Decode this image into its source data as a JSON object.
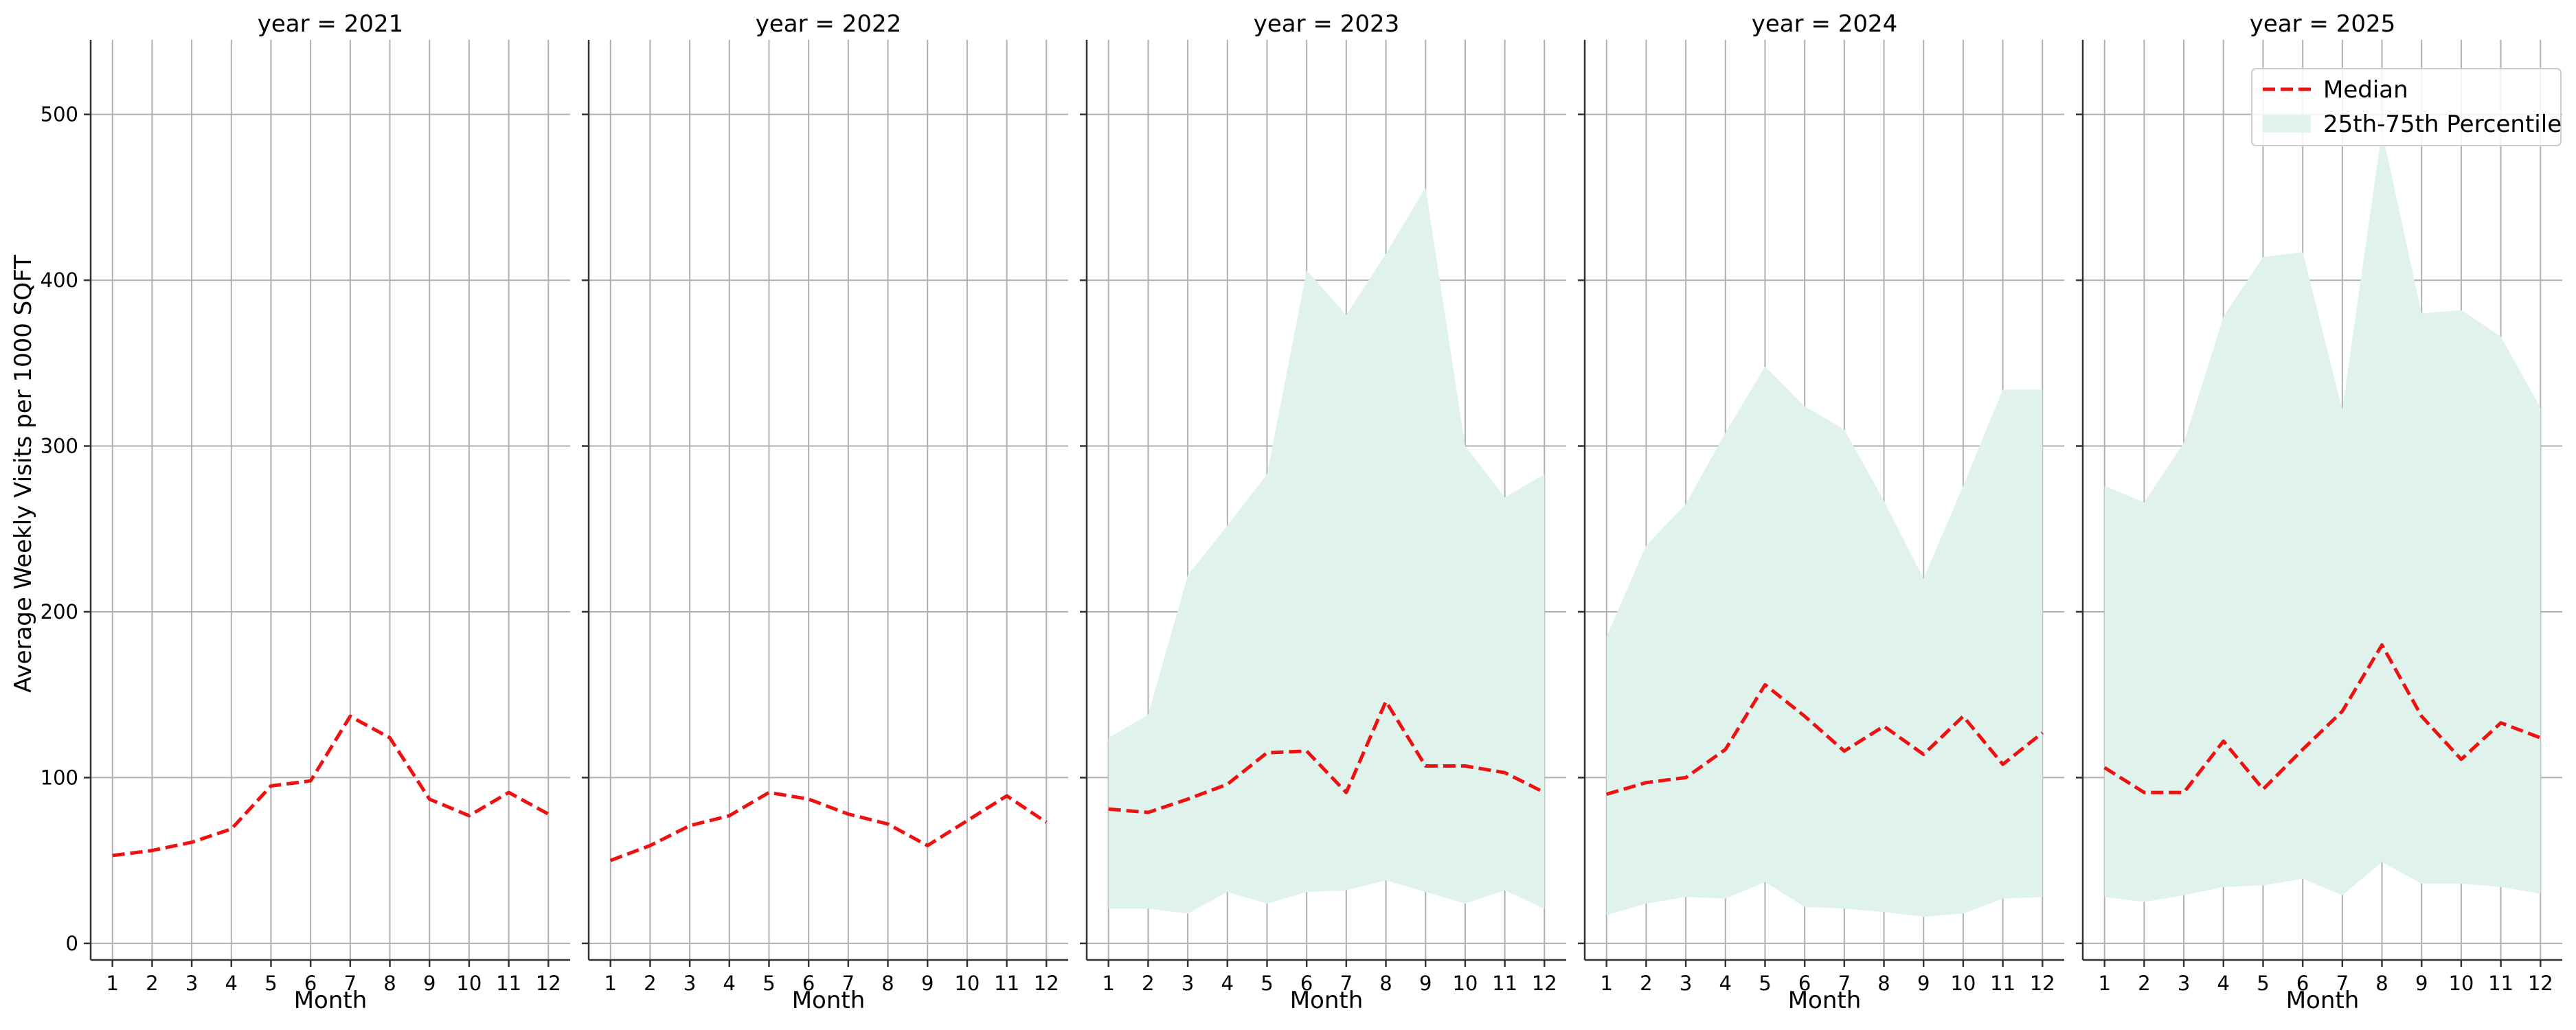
{
  "chart_data": {
    "type": "line",
    "ylabel": "Average Weekly Visits per 1000 SQFT",
    "xlabel": "Month",
    "ylim": [
      -10,
      545
    ],
    "yticks": [
      0,
      100,
      200,
      300,
      400,
      500
    ],
    "xticks": [
      1,
      2,
      3,
      4,
      5,
      6,
      7,
      8,
      9,
      10,
      11,
      12
    ],
    "grid": true,
    "legend": {
      "placement": "top-right",
      "panel_index": 4,
      "median_label": "Median",
      "band_label": "25th-75th Percentile"
    },
    "colors": {
      "median": "#ee1111",
      "band": "#dff2ec",
      "grid": "#b0b0b0",
      "axis": "#333333"
    },
    "panels": [
      {
        "title": "year = 2021",
        "months": [
          1,
          2,
          3,
          4,
          5,
          6,
          7,
          8,
          9,
          10,
          11,
          12
        ],
        "median": [
          53,
          56,
          61,
          69,
          95,
          98,
          137,
          124,
          87,
          77,
          91,
          78
        ],
        "p25": null,
        "p75": null
      },
      {
        "title": "year = 2022",
        "months": [
          1,
          2,
          3,
          4,
          5,
          6,
          7,
          8,
          9,
          10,
          11,
          12
        ],
        "median": [
          50,
          59,
          71,
          77,
          91,
          87,
          78,
          72,
          59,
          74,
          89,
          73
        ],
        "p25": null,
        "p75": null
      },
      {
        "title": "year = 2023",
        "months": [
          1,
          2,
          3,
          4,
          5,
          6,
          7,
          8,
          9,
          10,
          11,
          12
        ],
        "median": [
          81,
          79,
          87,
          96,
          115,
          116,
          91,
          146,
          107,
          107,
          103,
          91
        ],
        "p25": [
          21,
          21,
          18,
          31,
          24,
          31,
          32,
          38,
          31,
          24,
          32,
          21
        ],
        "p75": [
          124,
          138,
          222,
          252,
          283,
          406,
          379,
          416,
          456,
          300,
          269,
          283
        ]
      },
      {
        "title": "year = 2024",
        "months": [
          1,
          2,
          3,
          4,
          5,
          6,
          7,
          8,
          9,
          10,
          11,
          12
        ],
        "median": [
          90,
          97,
          100,
          117,
          156,
          137,
          116,
          131,
          114,
          137,
          108,
          127
        ],
        "p25": [
          17,
          24,
          28,
          27,
          37,
          22,
          21,
          19,
          16,
          18,
          27,
          28
        ],
        "p75": [
          185,
          240,
          265,
          308,
          348,
          324,
          310,
          267,
          220,
          276,
          334,
          334
        ]
      },
      {
        "title": "year = 2025",
        "months": [
          1,
          2,
          3,
          4,
          5,
          6,
          7,
          8,
          9,
          10,
          11,
          12
        ],
        "median": [
          106,
          91,
          91,
          122,
          93,
          117,
          140,
          180,
          137,
          111,
          133,
          124
        ],
        "p25": [
          28,
          25,
          29,
          34,
          35,
          39,
          29,
          49,
          36,
          36,
          34,
          30
        ],
        "p75": [
          276,
          266,
          302,
          378,
          414,
          417,
          322,
          490,
          380,
          382,
          366,
          323
        ]
      }
    ]
  }
}
